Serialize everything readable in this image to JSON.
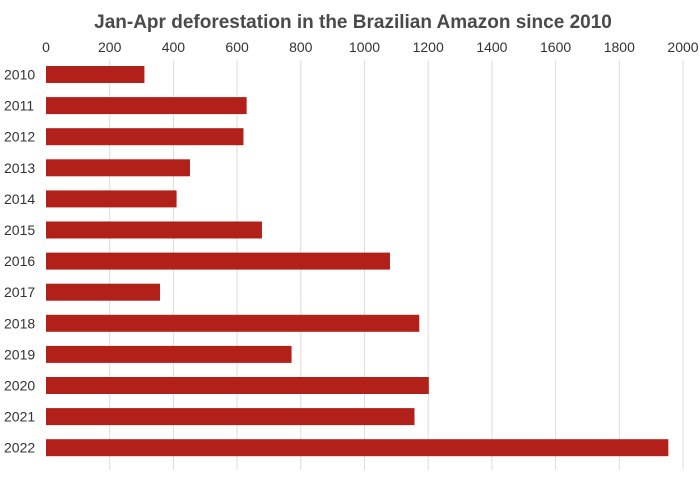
{
  "chart_data": {
    "type": "bar",
    "orientation": "horizontal",
    "title": "Jan-Apr deforestation in the Brazilian Amazon since 2010",
    "xlabel": "",
    "ylabel": "",
    "xlim": [
      0,
      2000
    ],
    "x_ticks": [
      0,
      200,
      400,
      600,
      800,
      1000,
      1200,
      1400,
      1600,
      1800,
      2000
    ],
    "x_tick_labels": [
      "0",
      "200",
      "400",
      "600",
      "800",
      "1000",
      "1200",
      "1400",
      "1600",
      "1800",
      "2000"
    ],
    "grid": true,
    "categories": [
      "2010",
      "2011",
      "2012",
      "2013",
      "2014",
      "2015",
      "2016",
      "2017",
      "2018",
      "2019",
      "2020",
      "2021",
      "2022"
    ],
    "values": [
      309,
      630,
      620,
      452,
      410,
      678,
      1080,
      358,
      1172,
      771,
      1202,
      1157,
      1954
    ],
    "colors": {
      "bar": "#b22119",
      "grid": "#dcdcdc",
      "text": "#333333",
      "title": "#4a4a4a"
    }
  }
}
